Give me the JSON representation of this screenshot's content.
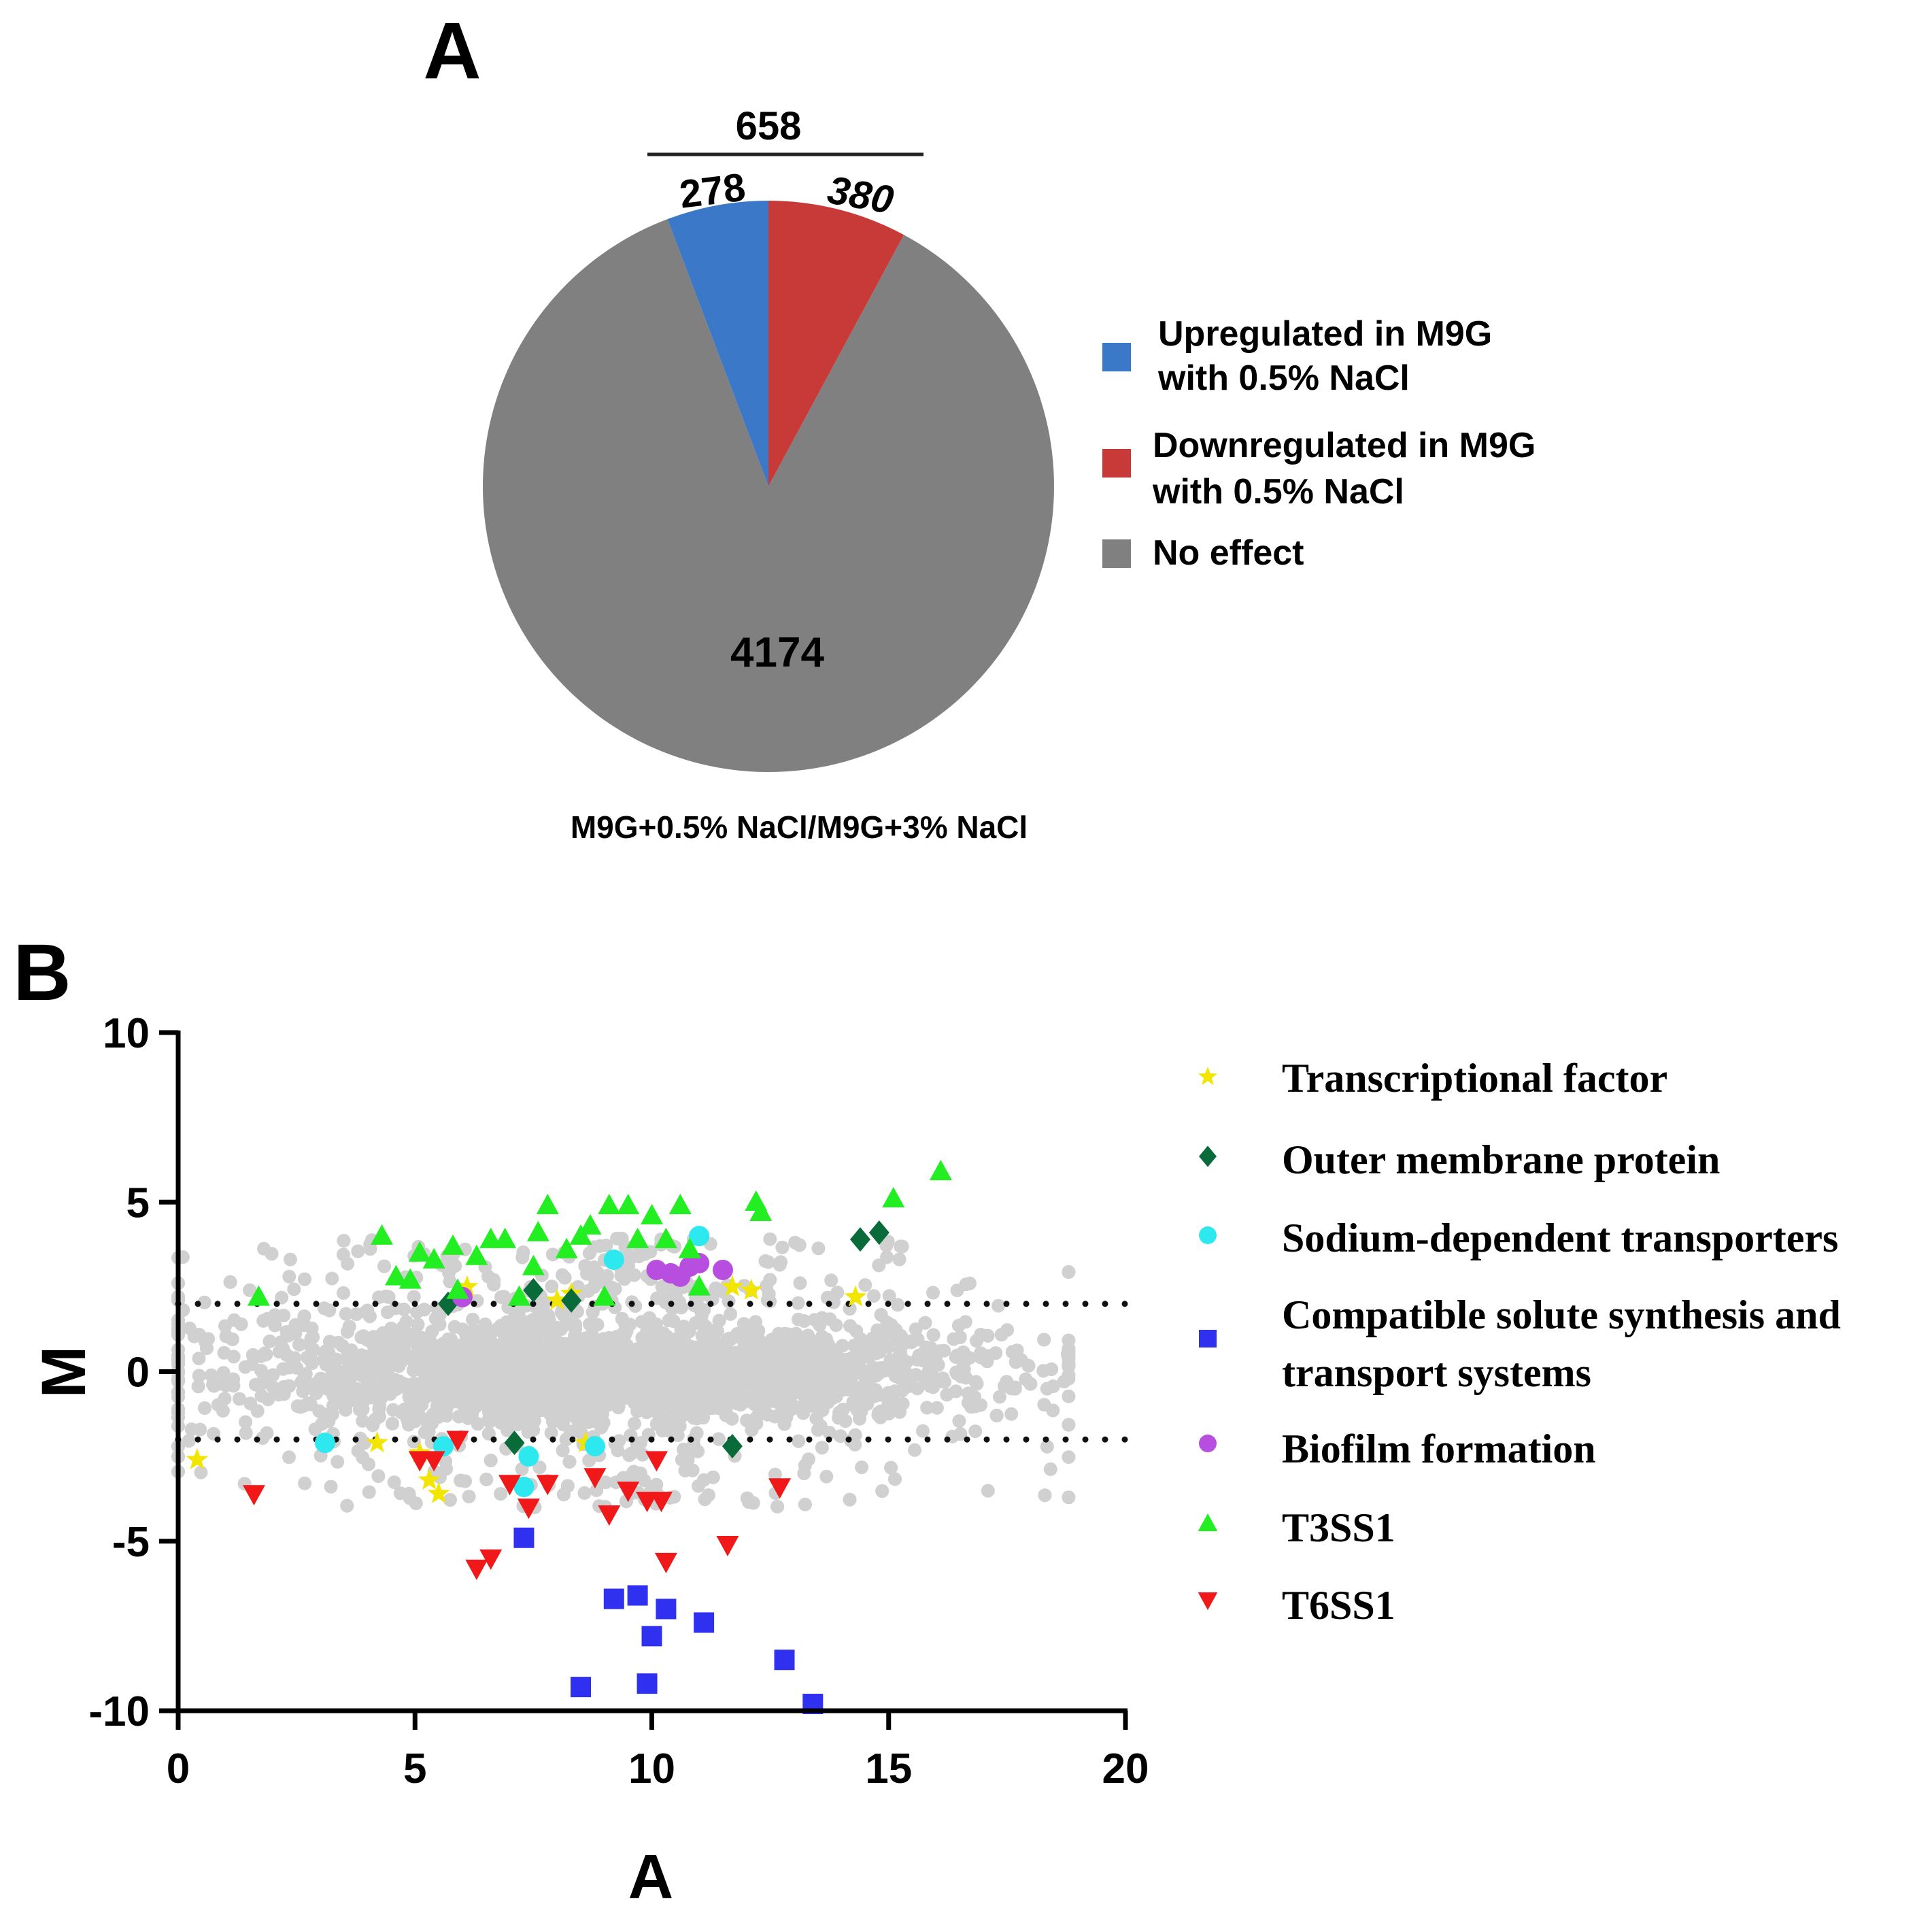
{
  "panels": {
    "a_label": "A",
    "b_label": "B"
  },
  "chart_data": [
    {
      "type": "pie",
      "panel": "A",
      "xlabel": "M9G+0.5% NaCl/M9G+3% NaCl",
      "total_differential": {
        "value": 658,
        "label": "658"
      },
      "slices": [
        {
          "name": "Upregulated in M9G with 0.5% NaCl",
          "value": 278,
          "label": "278",
          "color": "#3b78c8"
        },
        {
          "name": "Downregulated in M9G with 0.5% NaCl",
          "value": 380,
          "label": "380",
          "color": "#c73a38"
        },
        {
          "name": "No effect",
          "value": 4174,
          "label": "4174",
          "color": "#808080"
        }
      ],
      "legend": [
        {
          "lines": [
            "Upregulated in M9G",
            "with 0.5% NaCl"
          ],
          "color": "#3b78c8"
        },
        {
          "lines": [
            "Downregulated in M9G",
            "with 0.5% NaCl"
          ],
          "color": "#c73a38"
        },
        {
          "lines": [
            "No effect"
          ],
          "color": "#808080"
        }
      ],
      "legend_position": "right"
    },
    {
      "type": "scatter",
      "panel": "B",
      "xlabel": "A",
      "ylabel": "M",
      "xlim": [
        0,
        20
      ],
      "ylim": [
        -10,
        10
      ],
      "xticks": [
        0,
        5,
        10,
        15,
        20
      ],
      "yticks": [
        -10,
        -5,
        0,
        5,
        10
      ],
      "threshold_lines": [
        2,
        -2
      ],
      "background_series": {
        "name": "All genes",
        "color": "#d0d0d0"
      },
      "legend_position": "right",
      "series": [
        {
          "name": "Transcriptional factor",
          "marker": "star",
          "color": "#f2e600",
          "points": [
            [
              0.4,
              -2.6
            ],
            [
              4.2,
              -2.1
            ],
            [
              5.1,
              -2.4
            ],
            [
              5.3,
              -3.2
            ],
            [
              5.5,
              -3.6
            ],
            [
              6.1,
              2.5
            ],
            [
              8.0,
              2.1
            ],
            [
              8.3,
              2.3
            ],
            [
              8.6,
              -2.1
            ],
            [
              11.7,
              2.5
            ],
            [
              12.1,
              2.4
            ],
            [
              14.3,
              2.2
            ]
          ]
        },
        {
          "name": "Outer membrane protein",
          "marker": "diamond",
          "color": "#0a6b3a",
          "points": [
            [
              5.7,
              2.0
            ],
            [
              7.1,
              -2.1
            ],
            [
              7.5,
              2.4
            ],
            [
              8.3,
              2.1
            ],
            [
              11.7,
              -2.2
            ],
            [
              14.4,
              3.9
            ],
            [
              14.8,
              4.1
            ]
          ]
        },
        {
          "name": "Sodium-dependent transporters",
          "marker": "circle",
          "color": "#2ee8f0",
          "points": [
            [
              3.1,
              -2.1
            ],
            [
              5.6,
              -2.2
            ],
            [
              7.4,
              -2.5
            ],
            [
              7.3,
              -3.4
            ],
            [
              8.8,
              -2.2
            ],
            [
              9.2,
              3.3
            ],
            [
              11.0,
              4.0
            ]
          ]
        },
        {
          "name": "Compatible solute synthesis and transport systems",
          "marker": "square",
          "color": "#3030f0",
          "points": [
            [
              7.3,
              -4.9
            ],
            [
              8.5,
              -9.3
            ],
            [
              9.2,
              -6.7
            ],
            [
              9.7,
              -6.6
            ],
            [
              9.9,
              -9.2
            ],
            [
              10.0,
              -7.8
            ],
            [
              10.3,
              -7.0
            ],
            [
              11.1,
              -7.4
            ],
            [
              12.8,
              -8.5
            ],
            [
              13.4,
              -9.8
            ]
          ]
        },
        {
          "name": "Biofilm formation",
          "marker": "circle",
          "color": "#b84ee0",
          "points": [
            [
              6.0,
              2.2
            ],
            [
              10.1,
              3.0
            ],
            [
              10.4,
              2.9
            ],
            [
              10.6,
              2.8
            ],
            [
              10.8,
              3.1
            ],
            [
              11.0,
              3.2
            ],
            [
              11.5,
              3.0
            ]
          ]
        },
        {
          "name": "T3SS1",
          "marker": "triangle-up",
          "color": "#22ee22",
          "points": [
            [
              1.7,
              2.2
            ],
            [
              4.3,
              4.0
            ],
            [
              4.6,
              2.8
            ],
            [
              4.9,
              2.7
            ],
            [
              5.1,
              3.5
            ],
            [
              5.4,
              3.3
            ],
            [
              5.8,
              3.7
            ],
            [
              5.9,
              2.4
            ],
            [
              6.3,
              3.4
            ],
            [
              6.6,
              3.9
            ],
            [
              6.9,
              3.9
            ],
            [
              7.2,
              2.2
            ],
            [
              7.5,
              3.1
            ],
            [
              7.6,
              4.1
            ],
            [
              7.8,
              4.9
            ],
            [
              8.2,
              3.6
            ],
            [
              8.5,
              4.0
            ],
            [
              8.7,
              4.3
            ],
            [
              9.0,
              2.2
            ],
            [
              9.1,
              4.9
            ],
            [
              9.5,
              4.9
            ],
            [
              9.7,
              3.9
            ],
            [
              10.0,
              4.6
            ],
            [
              10.3,
              3.9
            ],
            [
              10.6,
              4.9
            ],
            [
              10.8,
              3.6
            ],
            [
              11.0,
              2.5
            ],
            [
              12.2,
              5.0
            ],
            [
              12.3,
              4.7
            ],
            [
              15.1,
              5.1
            ],
            [
              16.1,
              5.9
            ]
          ]
        },
        {
          "name": "T6SS1",
          "marker": "triangle-down",
          "color": "#f01818",
          "points": [
            [
              1.6,
              -3.6
            ],
            [
              5.1,
              -2.6
            ],
            [
              5.4,
              -2.6
            ],
            [
              5.9,
              -2.0
            ],
            [
              6.3,
              -5.8
            ],
            [
              6.6,
              -5.5
            ],
            [
              7.0,
              -3.3
            ],
            [
              7.4,
              -4.0
            ],
            [
              7.8,
              -3.3
            ],
            [
              8.8,
              -3.1
            ],
            [
              9.1,
              -4.2
            ],
            [
              9.5,
              -3.5
            ],
            [
              9.9,
              -3.8
            ],
            [
              10.1,
              -2.6
            ],
            [
              10.2,
              -3.8
            ],
            [
              10.3,
              -5.6
            ],
            [
              11.6,
              -5.1
            ],
            [
              12.7,
              -3.4
            ]
          ]
        }
      ]
    }
  ]
}
